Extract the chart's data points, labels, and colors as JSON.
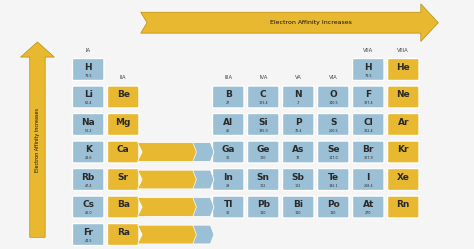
{
  "background_color": "#f5f5f5",
  "blue_color": "#9bbfd4",
  "yellow_color": "#e8b830",
  "arrow_color": "#e8b830",
  "text_color": "#2a2a2a",
  "elements": [
    {
      "sym": "H",
      "num": "73.5",
      "col": 2,
      "row": 6,
      "color": "blue"
    },
    {
      "sym": "H",
      "num": "73.5",
      "col": 10,
      "row": 6,
      "color": "blue"
    },
    {
      "sym": "He",
      "num": "",
      "col": 11,
      "row": 6,
      "color": "yellow"
    },
    {
      "sym": "Li",
      "num": "60.4",
      "col": 2,
      "row": 5,
      "color": "blue"
    },
    {
      "sym": "Be",
      "num": "",
      "col": 3,
      "row": 5,
      "color": "yellow"
    },
    {
      "sym": "B",
      "num": "27",
      "col": 6,
      "row": 5,
      "color": "blue"
    },
    {
      "sym": "C",
      "num": "123.4",
      "col": 7,
      "row": 5,
      "color": "blue"
    },
    {
      "sym": "N",
      "num": "-7",
      "col": 8,
      "row": 5,
      "color": "blue"
    },
    {
      "sym": "O",
      "num": "140.5",
      "col": 9,
      "row": 5,
      "color": "blue"
    },
    {
      "sym": "F",
      "num": "327.4",
      "col": 10,
      "row": 5,
      "color": "blue"
    },
    {
      "sym": "Ne",
      "num": "",
      "col": 11,
      "row": 5,
      "color": "yellow"
    },
    {
      "sym": "Na",
      "num": "52.2",
      "col": 2,
      "row": 4,
      "color": "blue"
    },
    {
      "sym": "Mg",
      "num": "",
      "col": 3,
      "row": 4,
      "color": "yellow"
    },
    {
      "sym": "Al",
      "num": "46",
      "col": 6,
      "row": 4,
      "color": "blue"
    },
    {
      "sym": "Si",
      "num": "135.0",
      "col": 7,
      "row": 4,
      "color": "blue"
    },
    {
      "sym": "P",
      "num": "72.4",
      "col": 8,
      "row": 4,
      "color": "blue"
    },
    {
      "sym": "S",
      "num": "200.5",
      "col": 9,
      "row": 4,
      "color": "blue"
    },
    {
      "sym": "Cl",
      "num": "302.4",
      "col": 10,
      "row": 4,
      "color": "blue"
    },
    {
      "sym": "Ar",
      "num": "",
      "col": 11,
      "row": 4,
      "color": "yellow"
    },
    {
      "sym": "K",
      "num": "48.6",
      "col": 2,
      "row": 3,
      "color": "blue"
    },
    {
      "sym": "Ca",
      "num": "",
      "col": 3,
      "row": 3,
      "color": "yellow"
    },
    {
      "sym": "Ga",
      "num": "30",
      "col": 6,
      "row": 3,
      "color": "blue"
    },
    {
      "sym": "Ge",
      "num": "120",
      "col": 7,
      "row": 3,
      "color": "blue"
    },
    {
      "sym": "As",
      "num": "78",
      "col": 8,
      "row": 3,
      "color": "blue"
    },
    {
      "sym": "Se",
      "num": "147.0",
      "col": 9,
      "row": 3,
      "color": "blue"
    },
    {
      "sym": "Br",
      "num": "327.9",
      "col": 10,
      "row": 3,
      "color": "blue"
    },
    {
      "sym": "Kr",
      "num": "",
      "col": 11,
      "row": 3,
      "color": "yellow"
    },
    {
      "sym": "Rb",
      "num": "47.4",
      "col": 2,
      "row": 2,
      "color": "blue"
    },
    {
      "sym": "Sr",
      "num": "",
      "col": 3,
      "row": 2,
      "color": "yellow"
    },
    {
      "sym": "In",
      "num": "29",
      "col": 6,
      "row": 2,
      "color": "blue"
    },
    {
      "sym": "Sn",
      "num": "122",
      "col": 7,
      "row": 2,
      "color": "blue"
    },
    {
      "sym": "Sb",
      "num": "102",
      "col": 8,
      "row": 2,
      "color": "blue"
    },
    {
      "sym": "Te",
      "num": "192.1",
      "col": 9,
      "row": 2,
      "color": "blue"
    },
    {
      "sym": "I",
      "num": "268.4",
      "col": 10,
      "row": 2,
      "color": "blue"
    },
    {
      "sym": "Xe",
      "num": "",
      "col": 11,
      "row": 2,
      "color": "yellow"
    },
    {
      "sym": "Cs",
      "num": "46.0",
      "col": 2,
      "row": 1,
      "color": "blue"
    },
    {
      "sym": "Ba",
      "num": "",
      "col": 3,
      "row": 1,
      "color": "yellow"
    },
    {
      "sym": "Tl",
      "num": "30",
      "col": 6,
      "row": 1,
      "color": "blue"
    },
    {
      "sym": "Pb",
      "num": "110",
      "col": 7,
      "row": 1,
      "color": "blue"
    },
    {
      "sym": "Bi",
      "num": "110",
      "col": 8,
      "row": 1,
      "color": "blue"
    },
    {
      "sym": "Po",
      "num": "180",
      "col": 9,
      "row": 1,
      "color": "blue"
    },
    {
      "sym": "At",
      "num": "270",
      "col": 10,
      "row": 1,
      "color": "blue"
    },
    {
      "sym": "Rn",
      "num": "",
      "col": 11,
      "row": 1,
      "color": "yellow"
    },
    {
      "sym": "Fr",
      "num": "44.5",
      "col": 2,
      "row": 0,
      "color": "blue"
    },
    {
      "sym": "Ra",
      "num": "",
      "col": 3,
      "row": 0,
      "color": "yellow"
    }
  ],
  "group_headers": [
    {
      "label": "IA",
      "col": 2,
      "row": 6.6
    },
    {
      "label": "IIA",
      "col": 3,
      "row": 5.6
    },
    {
      "label": "IIIA",
      "col": 6,
      "row": 5.6
    },
    {
      "label": "IVA",
      "col": 7,
      "row": 5.6
    },
    {
      "label": "VA",
      "col": 8,
      "row": 5.6
    },
    {
      "label": "VIA",
      "col": 9,
      "row": 5.6
    },
    {
      "label": "VIIA",
      "col": 10,
      "row": 6.6
    },
    {
      "label": "VIIIA",
      "col": 11,
      "row": 6.6
    }
  ]
}
